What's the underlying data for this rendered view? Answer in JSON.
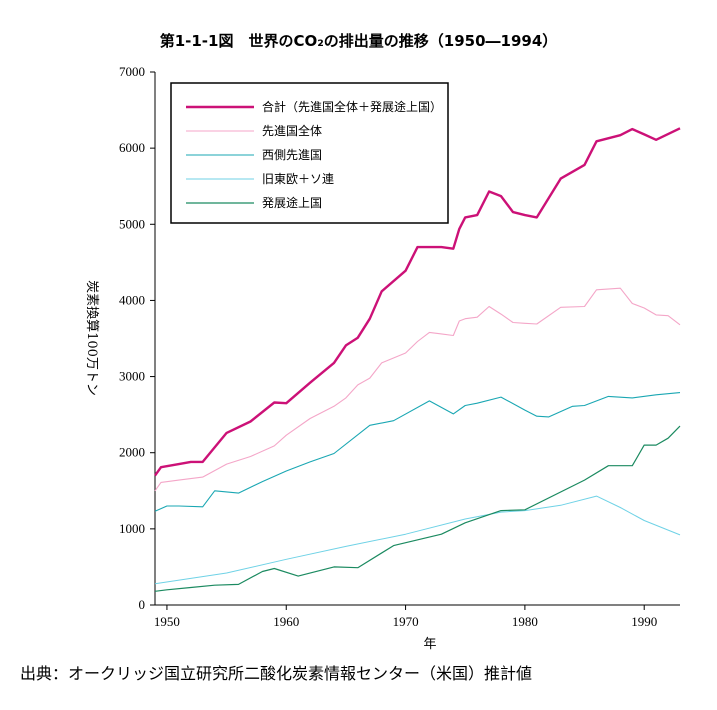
{
  "title": "第1-1-1図　世界のCO₂の排出量の推移（1950―1994）",
  "source": "出典：オークリッジ国立研究所二酸化炭素情報センター（米国）推計値",
  "chart_data": {
    "type": "line",
    "title": "第1-1-1図　世界のCO₂の排出量の推移（1950―1994）",
    "xlabel": "年",
    "ylabel": "炭素換算100万トン",
    "xlim": [
      1949,
      1993
    ],
    "ylim": [
      0,
      7000
    ],
    "x_ticks": [
      1950,
      1960,
      1970,
      1980,
      1990
    ],
    "y_ticks": [
      0,
      1000,
      2000,
      3000,
      4000,
      5000,
      6000,
      7000
    ],
    "grid": false,
    "legend_position": "top-left",
    "series": [
      {
        "name": "合計（先進国全体＋発展途上国）",
        "color": "#cc1177",
        "width": 2.4,
        "points": [
          [
            1949,
            1700
          ],
          [
            1949.5,
            1810
          ],
          [
            1951,
            1850
          ],
          [
            1952,
            1880
          ],
          [
            1953,
            1880
          ],
          [
            1955,
            2260
          ],
          [
            1957,
            2410
          ],
          [
            1959,
            2660
          ],
          [
            1960,
            2650
          ],
          [
            1962,
            2920
          ],
          [
            1964,
            3180
          ],
          [
            1965,
            3410
          ],
          [
            1966,
            3510
          ],
          [
            1967,
            3760
          ],
          [
            1968,
            4120
          ],
          [
            1970,
            4390
          ],
          [
            1971,
            4700
          ],
          [
            1972,
            4700
          ],
          [
            1973,
            4700
          ],
          [
            1974,
            4680
          ],
          [
            1974.5,
            4940
          ],
          [
            1975,
            5090
          ],
          [
            1976,
            5120
          ],
          [
            1977,
            5430
          ],
          [
            1978,
            5370
          ],
          [
            1979,
            5160
          ],
          [
            1980,
            5120
          ],
          [
            1981,
            5090
          ],
          [
            1983,
            5600
          ],
          [
            1985,
            5780
          ],
          [
            1986,
            6090
          ],
          [
            1988,
            6170
          ],
          [
            1989,
            6250
          ],
          [
            1990,
            6180
          ],
          [
            1991,
            6110
          ],
          [
            1993,
            6260
          ]
        ]
      },
      {
        "name": "先進国全体",
        "color": "#f4a6c8",
        "width": 1.1,
        "points": [
          [
            1949,
            1500
          ],
          [
            1949.5,
            1610
          ],
          [
            1951,
            1640
          ],
          [
            1952,
            1660
          ],
          [
            1953,
            1680
          ],
          [
            1955,
            1850
          ],
          [
            1957,
            1950
          ],
          [
            1959,
            2090
          ],
          [
            1960,
            2230
          ],
          [
            1962,
            2450
          ],
          [
            1964,
            2610
          ],
          [
            1965,
            2720
          ],
          [
            1966,
            2890
          ],
          [
            1967,
            2980
          ],
          [
            1968,
            3180
          ],
          [
            1970,
            3310
          ],
          [
            1971,
            3460
          ],
          [
            1972,
            3580
          ],
          [
            1973,
            3560
          ],
          [
            1974,
            3540
          ],
          [
            1974.5,
            3730
          ],
          [
            1975,
            3760
          ],
          [
            1976,
            3780
          ],
          [
            1977,
            3920
          ],
          [
            1978,
            3820
          ],
          [
            1979,
            3710
          ],
          [
            1980,
            3700
          ],
          [
            1981,
            3690
          ],
          [
            1983,
            3910
          ],
          [
            1985,
            3920
          ],
          [
            1986,
            4140
          ],
          [
            1988,
            4160
          ],
          [
            1989,
            3960
          ],
          [
            1990,
            3900
          ],
          [
            1991,
            3810
          ],
          [
            1992,
            3800
          ],
          [
            1993,
            3680
          ]
        ]
      },
      {
        "name": "西側先進国",
        "color": "#1aa7b3",
        "width": 1.1,
        "points": [
          [
            1949,
            1230
          ],
          [
            1950,
            1300
          ],
          [
            1951,
            1300
          ],
          [
            1953,
            1290
          ],
          [
            1954,
            1500
          ],
          [
            1956,
            1470
          ],
          [
            1958,
            1620
          ],
          [
            1960,
            1760
          ],
          [
            1962,
            1880
          ],
          [
            1964,
            1990
          ],
          [
            1967,
            2360
          ],
          [
            1969,
            2420
          ],
          [
            1972,
            2680
          ],
          [
            1974,
            2510
          ],
          [
            1975,
            2620
          ],
          [
            1976,
            2650
          ],
          [
            1978,
            2730
          ],
          [
            1980,
            2560
          ],
          [
            1981,
            2480
          ],
          [
            1982,
            2470
          ],
          [
            1984,
            2610
          ],
          [
            1985,
            2620
          ],
          [
            1987,
            2740
          ],
          [
            1989,
            2720
          ],
          [
            1991,
            2760
          ],
          [
            1993,
            2790
          ]
        ]
      },
      {
        "name": "旧東欧＋ソ連",
        "color": "#6fd2e6",
        "width": 1.0,
        "points": [
          [
            1949,
            280
          ],
          [
            1955,
            420
          ],
          [
            1960,
            600
          ],
          [
            1965,
            770
          ],
          [
            1970,
            930
          ],
          [
            1975,
            1130
          ],
          [
            1978,
            1220
          ],
          [
            1980,
            1240
          ],
          [
            1983,
            1310
          ],
          [
            1986,
            1430
          ],
          [
            1988,
            1280
          ],
          [
            1990,
            1110
          ],
          [
            1993,
            920
          ]
        ]
      },
      {
        "name": "発展途上国",
        "color": "#1b8a60",
        "width": 1.2,
        "points": [
          [
            1949,
            180
          ],
          [
            1950,
            200
          ],
          [
            1952,
            230
          ],
          [
            1954,
            260
          ],
          [
            1956,
            270
          ],
          [
            1958,
            440
          ],
          [
            1959,
            480
          ],
          [
            1961,
            380
          ],
          [
            1964,
            500
          ],
          [
            1966,
            490
          ],
          [
            1969,
            780
          ],
          [
            1973,
            930
          ],
          [
            1975,
            1080
          ],
          [
            1978,
            1240
          ],
          [
            1980,
            1250
          ],
          [
            1985,
            1640
          ],
          [
            1987,
            1830
          ],
          [
            1988,
            1830
          ],
          [
            1989,
            1830
          ],
          [
            1990,
            2100
          ],
          [
            1991,
            2100
          ],
          [
            1992,
            2190
          ],
          [
            1993,
            2350
          ]
        ]
      }
    ]
  }
}
